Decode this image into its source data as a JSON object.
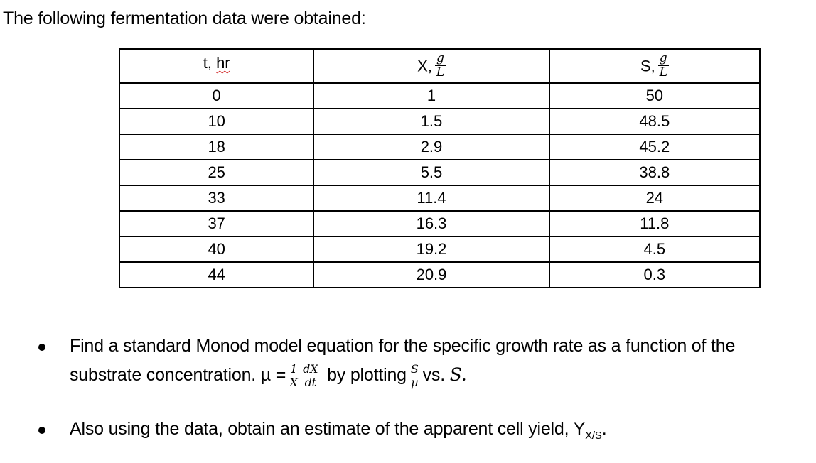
{
  "intro": "The following fermentation data were obtained:",
  "table": {
    "headers": {
      "t": "t, hr",
      "x_prefix": "X,",
      "s_prefix": "S,",
      "unit_num": "g",
      "unit_den": "L"
    },
    "rows": [
      [
        "0",
        "1",
        "50"
      ],
      [
        "10",
        "1.5",
        "48.5"
      ],
      [
        "18",
        "2.9",
        "45.2"
      ],
      [
        "25",
        "5.5",
        "38.8"
      ],
      [
        "33",
        "11.4",
        "24"
      ],
      [
        "37",
        "16.3",
        "11.8"
      ],
      [
        "40",
        "19.2",
        "4.5"
      ],
      [
        "44",
        "20.9",
        "0.3"
      ]
    ]
  },
  "bullets": {
    "b1_line1": "Find a standard Monod model equation for the specific growth rate as a function of the",
    "b1_line2_prefix": "substrate concentration.  µ =",
    "mu_frac1_num": "1",
    "mu_frac1_den": "X",
    "mu_frac2_num": "dX",
    "mu_frac2_den": "dt",
    "b1_by": "by plotting",
    "plot_num": "S",
    "plot_den": "µ",
    "b1_vs": "vs.",
    "b1_s": "S.",
    "b2_prefix": "Also using the data, obtain an estimate of the apparent cell yield, Y",
    "b2_sub": "X/S",
    "b2_suffix": "."
  }
}
